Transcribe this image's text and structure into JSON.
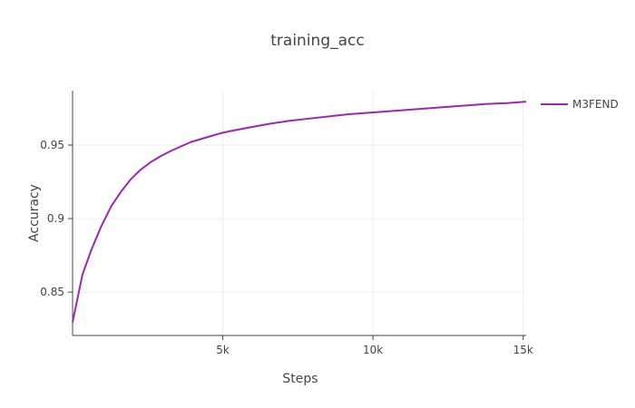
{
  "chart_data": {
    "type": "line",
    "title": "training_acc",
    "xlabel": "Steps",
    "ylabel": "Accuracy",
    "xlim": [
      0,
      15100
    ],
    "ylim": [
      0.8205,
      0.987
    ],
    "x_ticks": [
      5000,
      10000,
      15000
    ],
    "x_tick_labels": [
      "5k",
      "10k",
      "15k"
    ],
    "y_ticks": [
      0.85,
      0.9,
      0.95
    ],
    "y_tick_labels": [
      "0.85",
      "0.9",
      "0.95"
    ],
    "grid": true,
    "legend_position": "top-right",
    "series": [
      {
        "name": "M3FEND",
        "color": "#9c27b0",
        "x": [
          0,
          330,
          630,
          960,
          1290,
          1620,
          1950,
          2280,
          2610,
          2940,
          3270,
          3600,
          3930,
          4260,
          4590,
          4920,
          5250,
          5900,
          6560,
          7220,
          7880,
          8540,
          9190,
          9850,
          10510,
          11170,
          11820,
          12480,
          13140,
          13800,
          14460,
          15100
        ],
        "y": [
          0.8295,
          0.862,
          0.879,
          0.895,
          0.9085,
          0.9185,
          0.927,
          0.9335,
          0.9385,
          0.9425,
          0.946,
          0.949,
          0.952,
          0.954,
          0.956,
          0.958,
          0.9595,
          0.962,
          0.9645,
          0.9665,
          0.968,
          0.9695,
          0.971,
          0.972,
          0.973,
          0.974,
          0.975,
          0.976,
          0.977,
          0.978,
          0.9785,
          0.9795
        ]
      }
    ]
  }
}
